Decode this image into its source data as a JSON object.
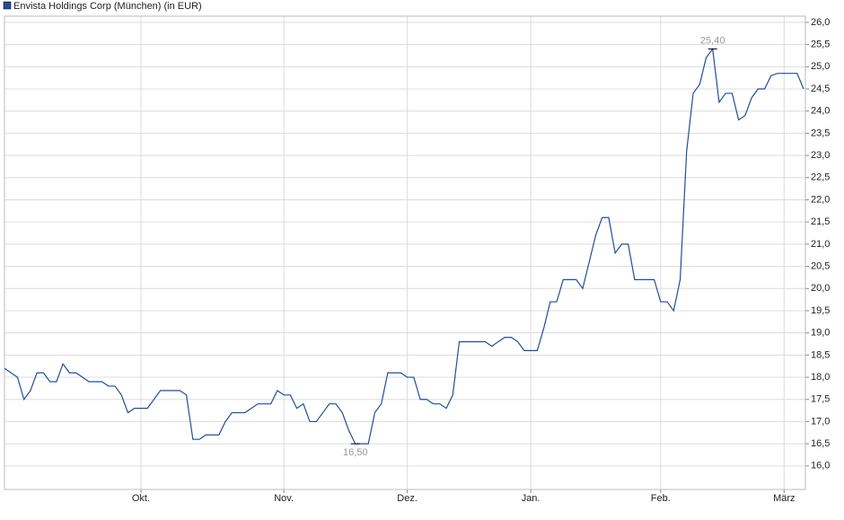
{
  "chart_data": {
    "type": "line",
    "title": null,
    "legend": "top-left",
    "grid": true,
    "categories": [
      null,
      null,
      null,
      null,
      null,
      null,
      null,
      null,
      null,
      null,
      null,
      null,
      null,
      null,
      null,
      null,
      null,
      null,
      null,
      null,
      null,
      "Okt.",
      null,
      null,
      null,
      null,
      null,
      null,
      null,
      null,
      null,
      null,
      null,
      null,
      null,
      null,
      null,
      null,
      null,
      null,
      null,
      null,
      null,
      "Nov.",
      null,
      null,
      null,
      null,
      null,
      null,
      null,
      null,
      null,
      null,
      null,
      null,
      null,
      null,
      null,
      null,
      null,
      null,
      "Dez.",
      null,
      null,
      null,
      null,
      null,
      null,
      null,
      null,
      null,
      null,
      null,
      null,
      null,
      null,
      null,
      null,
      null,
      null,
      "Jan.",
      null,
      null,
      null,
      null,
      null,
      null,
      null,
      null,
      null,
      null,
      null,
      null,
      null,
      null,
      null,
      null,
      null,
      null,
      null,
      "Feb.",
      null,
      null,
      null,
      null,
      null,
      null,
      null,
      null,
      null,
      null,
      null,
      null,
      null,
      null,
      null,
      null,
      null,
      null,
      "März",
      null,
      null,
      null
    ],
    "series": [
      {
        "name": "Envista Holdings Corp (München) (in EUR)",
        "color": "#1f4e9c",
        "values": [
          18.2,
          18.1,
          18.0,
          17.5,
          17.7,
          18.1,
          18.1,
          17.9,
          17.9,
          18.3,
          18.1,
          18.1,
          18.0,
          17.9,
          17.9,
          17.9,
          17.8,
          17.8,
          17.6,
          17.2,
          17.3,
          17.3,
          17.3,
          17.5,
          17.7,
          17.7,
          17.7,
          17.7,
          17.6,
          16.6,
          16.6,
          16.7,
          16.7,
          16.7,
          17.0,
          17.2,
          17.2,
          17.2,
          17.3,
          17.4,
          17.4,
          17.4,
          17.7,
          17.6,
          17.6,
          17.3,
          17.4,
          17.0,
          17.0,
          17.2,
          17.4,
          17.4,
          17.2,
          16.8,
          16.5,
          16.5,
          16.5,
          17.2,
          17.4,
          18.1,
          18.1,
          18.1,
          18.0,
          18.0,
          17.5,
          17.5,
          17.4,
          17.4,
          17.3,
          17.6,
          18.8,
          18.8,
          18.8,
          18.8,
          18.8,
          18.7,
          18.8,
          18.9,
          18.9,
          18.8,
          18.6,
          18.6,
          18.6,
          19.1,
          19.7,
          19.7,
          20.2,
          20.2,
          20.2,
          20.0,
          20.6,
          21.2,
          21.6,
          21.6,
          20.8,
          21.0,
          21.0,
          20.2,
          20.2,
          20.2,
          20.2,
          19.7,
          19.7,
          19.5,
          20.2,
          23.1,
          24.4,
          24.6,
          25.2,
          25.4,
          24.2,
          24.4,
          24.4,
          23.8,
          23.9,
          24.3,
          24.5,
          24.5,
          24.8,
          24.85,
          24.85,
          24.85,
          24.85,
          24.5
        ]
      }
    ],
    "annotations": [
      {
        "value": 25.4,
        "label": "25,40"
      },
      {
        "value": 16.5,
        "label": "16,50"
      }
    ],
    "ylim": [
      15.47,
      26.14
    ],
    "yticks": [
      {
        "value": 16,
        "label": "16,0"
      },
      {
        "value": 16.5,
        "label": "16,5"
      },
      {
        "value": 17,
        "label": "17,0"
      },
      {
        "value": 17.5,
        "label": "17,5"
      },
      {
        "value": 18,
        "label": "18,0"
      },
      {
        "value": 18.5,
        "label": "18,5"
      },
      {
        "value": 19,
        "label": "19,0"
      },
      {
        "value": 19.5,
        "label": "19,5"
      },
      {
        "value": 20,
        "label": "20,0"
      },
      {
        "value": 20.5,
        "label": "20,5"
      },
      {
        "value": 21,
        "label": "21,0"
      },
      {
        "value": 21.5,
        "label": "21,5"
      },
      {
        "value": 22,
        "label": "22,0"
      },
      {
        "value": 22.5,
        "label": "22,5"
      },
      {
        "value": 23,
        "label": "23,0"
      },
      {
        "value": 23.5,
        "label": "23,5"
      },
      {
        "value": 24,
        "label": "24,0"
      },
      {
        "value": 24.5,
        "label": "24,5"
      },
      {
        "value": 25,
        "label": "25,0"
      },
      {
        "value": 25.5,
        "label": "25,5"
      },
      {
        "value": 26,
        "label": "26,0"
      }
    ]
  }
}
